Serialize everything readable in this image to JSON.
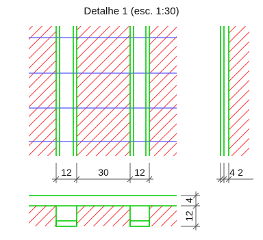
{
  "title": "Detalhe 1 (esc. 1:30)",
  "colors": {
    "hatch": "#ff0000",
    "panel_edge": "#00cc00",
    "rows": "#5555ff",
    "dimension": "#555555",
    "text": "#111111"
  },
  "dimensions": {
    "left_gap": "12",
    "middle": "30",
    "right_gap": "12",
    "side_a": "4",
    "side_b": "2",
    "section_top": "4",
    "section_depth": "12"
  }
}
